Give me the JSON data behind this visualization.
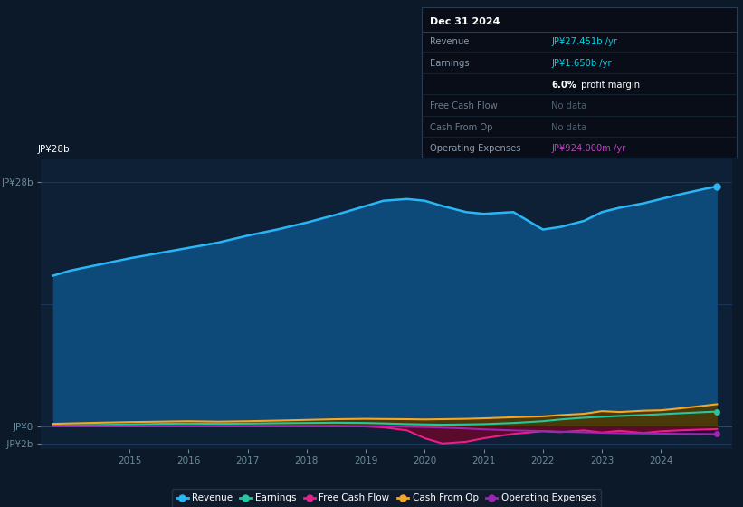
{
  "bg_color": "#0b1929",
  "plot_bg_color": "#0d2035",
  "info_box_bg": "#080e18",
  "grid_color": "#1a3050",
  "years": [
    2013.7,
    2014.0,
    2014.5,
    2015.0,
    2015.5,
    2016.0,
    2016.5,
    2017.0,
    2017.5,
    2018.0,
    2018.5,
    2019.0,
    2019.3,
    2019.7,
    2020.0,
    2020.3,
    2020.7,
    2021.0,
    2021.5,
    2022.0,
    2022.3,
    2022.7,
    2023.0,
    2023.3,
    2023.7,
    2024.0,
    2024.3,
    2024.7,
    2024.95
  ],
  "revenue": [
    17.2,
    17.8,
    18.5,
    19.2,
    19.8,
    20.4,
    21.0,
    21.8,
    22.5,
    23.3,
    24.2,
    25.2,
    25.8,
    26.0,
    25.8,
    25.2,
    24.5,
    24.3,
    24.5,
    22.5,
    22.8,
    23.5,
    24.5,
    25.0,
    25.5,
    26.0,
    26.5,
    27.1,
    27.451
  ],
  "earnings": [
    0.05,
    0.08,
    0.12,
    0.18,
    0.25,
    0.28,
    0.25,
    0.28,
    0.32,
    0.35,
    0.38,
    0.35,
    0.3,
    0.22,
    0.18,
    0.15,
    0.18,
    0.22,
    0.35,
    0.55,
    0.75,
    0.95,
    1.05,
    1.15,
    1.25,
    1.35,
    1.45,
    1.58,
    1.65
  ],
  "free_cash_flow": [
    0.0,
    0.0,
    0.0,
    0.0,
    0.0,
    0.0,
    0.0,
    0.0,
    0.0,
    0.0,
    0.0,
    -0.05,
    -0.15,
    -0.5,
    -1.4,
    -2.0,
    -1.8,
    -1.4,
    -0.9,
    -0.6,
    -0.7,
    -0.5,
    -0.75,
    -0.55,
    -0.8,
    -0.6,
    -0.5,
    -0.4,
    -0.35
  ],
  "cash_from_op": [
    0.25,
    0.3,
    0.38,
    0.45,
    0.5,
    0.55,
    0.5,
    0.55,
    0.62,
    0.7,
    0.78,
    0.82,
    0.8,
    0.78,
    0.75,
    0.78,
    0.82,
    0.88,
    1.0,
    1.1,
    1.25,
    1.4,
    1.7,
    1.6,
    1.75,
    1.8,
    2.0,
    2.3,
    2.5
  ],
  "op_expenses": [
    -0.04,
    -0.04,
    -0.04,
    -0.04,
    -0.04,
    -0.04,
    -0.04,
    -0.04,
    -0.04,
    -0.04,
    -0.04,
    -0.04,
    -0.05,
    -0.08,
    -0.12,
    -0.18,
    -0.28,
    -0.38,
    -0.5,
    -0.58,
    -0.65,
    -0.72,
    -0.78,
    -0.82,
    -0.85,
    -0.87,
    -0.9,
    -0.91,
    -0.924
  ],
  "ylim": [
    -2.6,
    30.5
  ],
  "xlim": [
    2013.5,
    2025.2
  ],
  "xtick_years": [
    2015,
    2016,
    2017,
    2018,
    2019,
    2020,
    2021,
    2022,
    2023,
    2024
  ],
  "ytick_positions": [
    -2,
    0,
    28
  ],
  "ytick_labels": [
    "-JP¥2b",
    "JP¥0",
    "JP¥28b"
  ],
  "colors": {
    "revenue": "#29b6f6",
    "revenue_fill": "#0d4a7a",
    "earnings": "#26c6a0",
    "earnings_fill": "#0d4a3a",
    "free_cash_flow": "#e91e8c",
    "free_cash_flow_fill": "#5a0a2a",
    "cash_from_op": "#f5a623",
    "cash_from_op_fill": "#4a3a0a",
    "op_expenses": "#9c27b0",
    "op_expenses_fill": "#2a0a3a"
  },
  "legend": [
    {
      "label": "Revenue",
      "color": "#29b6f6"
    },
    {
      "label": "Earnings",
      "color": "#26c6a0"
    },
    {
      "label": "Free Cash Flow",
      "color": "#e91e8c"
    },
    {
      "label": "Cash From Op",
      "color": "#f5a623"
    },
    {
      "label": "Operating Expenses",
      "color": "#9c27b0"
    }
  ],
  "info_box": {
    "date": "Dec 31 2024",
    "rows": [
      {
        "label": "Revenue",
        "value": "JP¥27.451b /yr",
        "value_color": "#00d4e8",
        "label_color": "#8a9aaa"
      },
      {
        "label": "Earnings",
        "value": "JP¥1.650b /yr",
        "value_color": "#00d4e8",
        "label_color": "#8a9aaa"
      },
      {
        "label": "",
        "value2_bold": "6.0%",
        "value2_rest": " profit margin",
        "value_color": "#ffffff",
        "label_color": "#8a9aaa"
      },
      {
        "label": "Free Cash Flow",
        "value": "No data",
        "value_color": "#4a6070",
        "label_color": "#6a7a8a"
      },
      {
        "label": "Cash From Op",
        "value": "No data",
        "value_color": "#4a6070",
        "label_color": "#6a7a8a"
      },
      {
        "label": "Operating Expenses",
        "value": "JP¥924.000m /yr",
        "value_color": "#bf40bf",
        "label_color": "#8a9aaa"
      }
    ]
  }
}
